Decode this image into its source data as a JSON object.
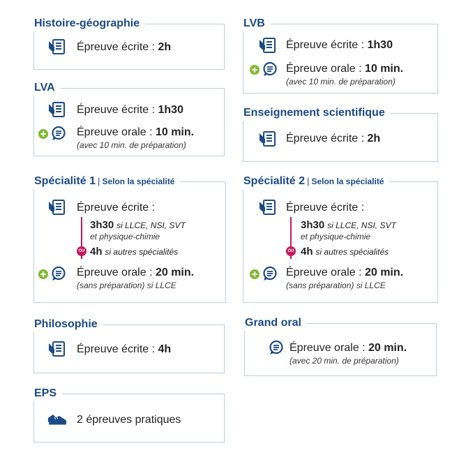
{
  "colors": {
    "title": "#1b4a86",
    "icon": "#1b4a86",
    "border": "#b8cfe0",
    "plus": "#7dbb2e",
    "ou": "#c2185b"
  },
  "hist": {
    "title": "Histoire-géographie",
    "written_label": "Épreuve écrite : ",
    "written_value": "2h"
  },
  "lva": {
    "title": "LVA",
    "written_label": "Épreuve écrite : ",
    "written_value": "1h30",
    "oral_label": "Épreuve orale : ",
    "oral_value": "10 min.",
    "oral_note": "(avec 10 min. de préparation)"
  },
  "lvb": {
    "title": "LVB",
    "written_label": "Épreuve écrite : ",
    "written_value": "1h30",
    "oral_label": "Épreuve orale : ",
    "oral_value": "10 min.",
    "oral_note": "(avec 10 min. de préparation)"
  },
  "ens": {
    "title": "Enseignement scientifique",
    "written_label": "Épreuve écrite : ",
    "written_value": "2h"
  },
  "spe1": {
    "title": "Spécialité 1",
    "subtitle": "Selon la spécialité",
    "written_label": "Épreuve écrite :",
    "opt1_value": "3h30",
    "opt1_note_line1": "si LLCE, NSI, SVT",
    "opt1_note_line2": "et physique-chimie",
    "ou": "OU",
    "opt2_value": "4h",
    "opt2_note": "si autres spécialités",
    "oral_label": "Épreuve orale : ",
    "oral_value": "20 min.",
    "oral_note": "(sans préparation) si LLCE"
  },
  "spe2": {
    "title": "Spécialité 2",
    "subtitle": "Selon la spécialité",
    "written_label": "Épreuve écrite :",
    "opt1_value": "3h30",
    "opt1_note_line1": "si LLCE, NSI, SVT",
    "opt1_note_line2": "et physique-chimie",
    "ou": "OU",
    "opt2_value": "4h",
    "opt2_note": "si autres spécialités",
    "oral_label": "Épreuve orale : ",
    "oral_value": "20 min.",
    "oral_note": "(sans préparation) si LLCE"
  },
  "philo": {
    "title": "Philosophie",
    "written_label": "Épreuve écrite : ",
    "written_value": "4h"
  },
  "grand": {
    "title": "Grand oral",
    "oral_label": "Épreuve orale : ",
    "oral_value": "20 min.",
    "oral_note": "(avec 20 min. de préparation)"
  },
  "eps": {
    "title": "EPS",
    "text": "2 épreuves pratiques"
  },
  "icons": {
    "written": "document-icon",
    "oral": "speech-bubble-icon",
    "plus": "plus-circle-icon",
    "sport": "sneaker-icon"
  }
}
